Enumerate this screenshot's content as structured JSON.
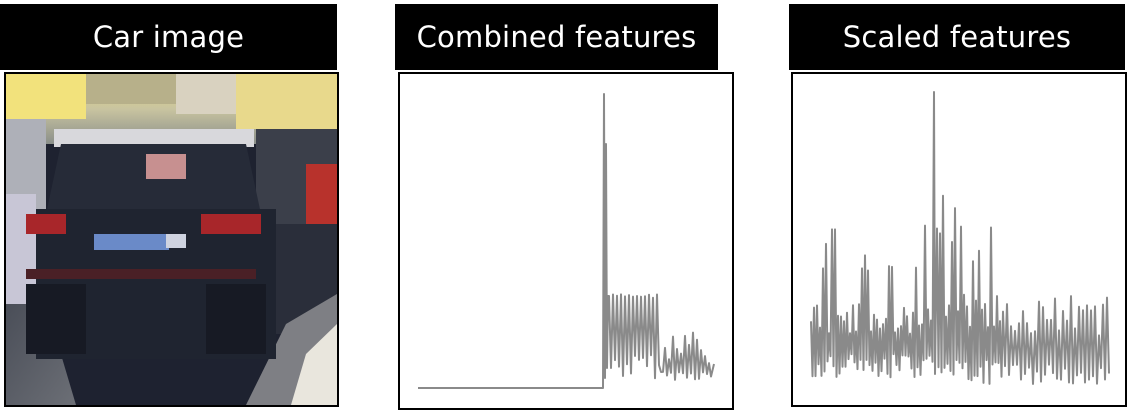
{
  "colors": {
    "header_bg": "#000000",
    "header_text": "#ffffff",
    "plot_line": "#8a8a8a",
    "frame_border": "#000000"
  },
  "panels": [
    {
      "id": "car-image",
      "title": "Car image"
    },
    {
      "id": "combined-features",
      "title": "Combined features"
    },
    {
      "id": "scaled-features",
      "title": "Scaled features"
    }
  ]
}
